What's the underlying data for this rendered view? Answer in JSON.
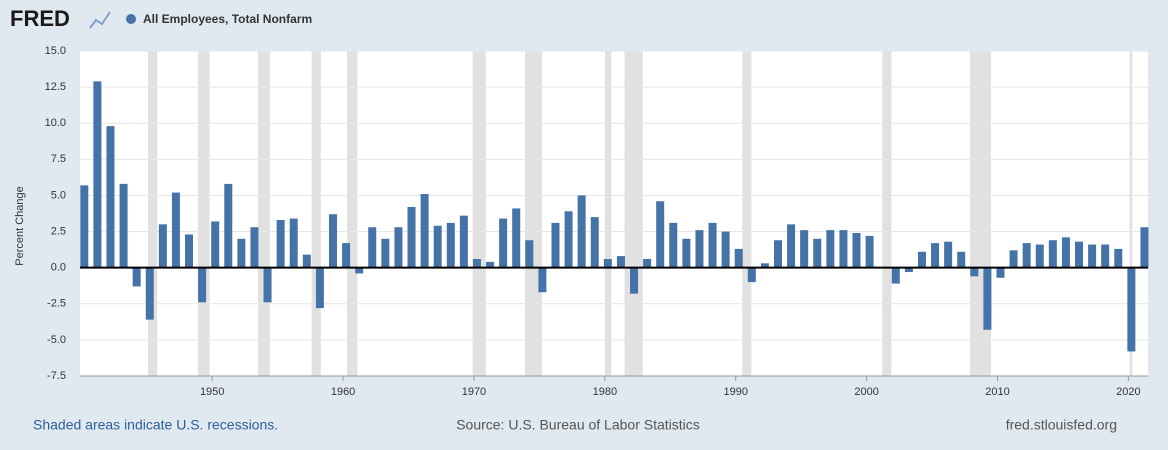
{
  "chart_data": {
    "type": "bar",
    "brand": "FRED",
    "series": [
      {
        "name": "All Employees, Total Nonfarm",
        "color": "#4572a7",
        "x": [
          1940,
          1941,
          1942,
          1943,
          1944,
          1945,
          1946,
          1947,
          1948,
          1949,
          1950,
          1951,
          1952,
          1953,
          1954,
          1955,
          1956,
          1957,
          1958,
          1959,
          1960,
          1961,
          1962,
          1963,
          1964,
          1965,
          1966,
          1967,
          1968,
          1969,
          1970,
          1971,
          1972,
          1973,
          1974,
          1975,
          1976,
          1977,
          1978,
          1979,
          1980,
          1981,
          1982,
          1983,
          1984,
          1985,
          1986,
          1987,
          1988,
          1989,
          1990,
          1991,
          1992,
          1993,
          1994,
          1995,
          1996,
          1997,
          1998,
          1999,
          2000,
          2001,
          2002,
          2003,
          2004,
          2005,
          2006,
          2007,
          2008,
          2009,
          2010,
          2011,
          2012,
          2013,
          2014,
          2015,
          2016,
          2017,
          2018,
          2019,
          2020,
          2021
        ],
        "values": [
          5.7,
          12.9,
          9.8,
          5.8,
          -1.3,
          -3.6,
          3.0,
          5.2,
          2.3,
          -2.4,
          3.2,
          5.8,
          2.0,
          2.8,
          -2.4,
          3.3,
          3.4,
          0.9,
          -2.8,
          3.7,
          1.7,
          -0.4,
          2.8,
          2.0,
          2.8,
          4.2,
          5.1,
          2.9,
          3.1,
          3.6,
          0.6,
          0.4,
          3.4,
          4.1,
          1.9,
          -1.7,
          3.1,
          3.9,
          5.0,
          3.5,
          0.6,
          0.8,
          -1.8,
          0.6,
          4.6,
          3.1,
          2.0,
          2.6,
          3.1,
          2.5,
          1.3,
          -1.0,
          0.3,
          1.9,
          3.0,
          2.6,
          2.0,
          2.6,
          2.6,
          2.4,
          2.2,
          0.0,
          -1.1,
          -0.3,
          1.1,
          1.7,
          1.8,
          1.1,
          -0.6,
          -4.3,
          -0.7,
          1.2,
          1.7,
          1.6,
          1.9,
          2.1,
          1.8,
          1.6,
          1.6,
          1.3,
          -5.8,
          2.8
        ]
      }
    ],
    "recessions": [
      [
        1945.1,
        1945.8
      ],
      [
        1948.9,
        1949.8
      ],
      [
        1953.5,
        1954.4
      ],
      [
        1957.6,
        1958.3
      ],
      [
        1960.3,
        1961.1
      ],
      [
        1969.9,
        1970.9
      ],
      [
        1973.9,
        1975.2
      ],
      [
        1980.0,
        1980.5
      ],
      [
        1981.5,
        1982.9
      ],
      [
        1990.5,
        1991.2
      ],
      [
        2001.2,
        2001.9
      ],
      [
        2007.9,
        2009.5
      ],
      [
        2020.1,
        2020.3
      ]
    ],
    "xlim": [
      1939.9,
      2021.5
    ],
    "xticks": [
      1950,
      1960,
      1970,
      1980,
      1990,
      2000,
      2010,
      2020
    ],
    "ylim": [
      -7.5,
      15
    ],
    "yticks": [
      {
        "value": 15,
        "label": "15.0"
      },
      {
        "value": 12.5,
        "label": "12.5"
      },
      {
        "value": 10,
        "label": "10.0"
      },
      {
        "value": 7.5,
        "label": "7.5"
      },
      {
        "value": 5,
        "label": "5.0"
      },
      {
        "value": 2.5,
        "label": "2.5"
      },
      {
        "value": 0,
        "label": "0.0"
      },
      {
        "value": -2.5,
        "label": "-2.5"
      },
      {
        "value": -5,
        "label": "-5.0"
      },
      {
        "value": -7.5,
        "label": "-7.5"
      }
    ],
    "y_label": "Percent Change",
    "grid": true,
    "recession_note": "Shaded areas indicate U.S. recessions.",
    "source": "Source: U.S. Bureau of Labor Statistics",
    "site": "fred.stlouisfed.org"
  }
}
